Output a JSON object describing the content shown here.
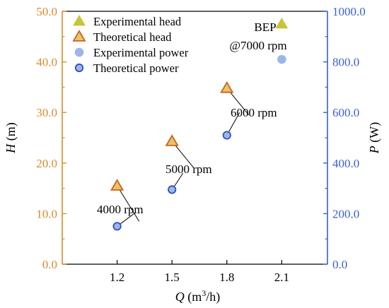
{
  "chart_data": {
    "type": "scatter",
    "x_categories": [
      "1.2",
      "1.5",
      "1.8",
      "2.1"
    ],
    "x": [
      1.2,
      1.5,
      1.8,
      2.1
    ],
    "xlim": [
      0.9,
      2.35
    ],
    "xlabel": {
      "italic": "Q",
      "rest": " (m",
      "sup": "3",
      "tail": "/h)"
    },
    "y_left": {
      "label_italic": "H",
      "label_rest": " (m)",
      "ylim": [
        0,
        50
      ],
      "ticks": [
        "0.0",
        "10.0",
        "20.0",
        "30.0",
        "40.0",
        "50.0"
      ],
      "color": "#d98c2b"
    },
    "y_right": {
      "label_italic": "P",
      "label_rest": " (W)",
      "ylim": [
        0,
        1000
      ],
      "ticks": [
        "0.0",
        "200.0",
        "400.0",
        "600.0",
        "800.0",
        "1000.0"
      ],
      "color": "#3a5fcd"
    },
    "series": [
      {
        "name": "Experimental head",
        "axis": "left",
        "marker": "triangle-filled",
        "color": "#c9c43a",
        "edge": "#c9c43a",
        "x": [
          2.1
        ],
        "y": [
          47.5
        ]
      },
      {
        "name": "Theoretical head",
        "axis": "left",
        "marker": "triangle-open",
        "color": "#e8c36a",
        "edge": "#c8641e",
        "x": [
          1.2,
          1.5,
          1.8
        ],
        "y": [
          15.5,
          24.3,
          34.8
        ]
      },
      {
        "name": "Experimental power",
        "axis": "right",
        "marker": "circle-filled",
        "color": "#9db6ea",
        "edge": "#9db6ea",
        "x": [
          2.1
        ],
        "y": [
          810
        ]
      },
      {
        "name": "Theoretical power",
        "axis": "right",
        "marker": "circle-open",
        "color": "#9db6ea",
        "edge": "#2f4fbf",
        "x": [
          1.2,
          1.5,
          1.8
        ],
        "y": [
          150,
          295,
          510
        ]
      }
    ],
    "annotations": [
      {
        "text": "4000 rpm"
      },
      {
        "text": "5000 rpm"
      },
      {
        "text": "6000 rpm"
      },
      {
        "text": "BEP"
      },
      {
        "text": "@7000 rpm"
      }
    ],
    "legend_position": "top-left",
    "grid": false
  }
}
